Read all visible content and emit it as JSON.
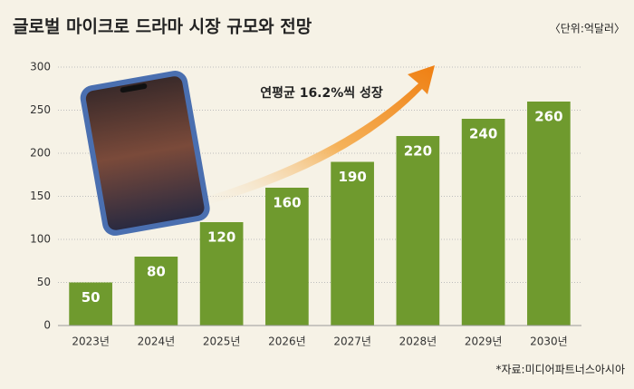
{
  "chart_data": {
    "type": "bar",
    "title": "글로벌 마이크로 드라마 시장 규모와 전망",
    "unit": "〈단위:억달러〉",
    "annotation": "연평균 16.2%씩 성장",
    "source": "*자료:미디어파트너스아시아",
    "categories": [
      "2023년",
      "2024년",
      "2025년",
      "2026년",
      "2027년",
      "2028년",
      "2029년",
      "2030년"
    ],
    "values": [
      50,
      80,
      120,
      160,
      190,
      220,
      240,
      260
    ],
    "color": "#6f9a2e",
    "ylim": [
      0,
      300
    ],
    "yticks": [
      0,
      50,
      100,
      150,
      200,
      250,
      300
    ],
    "grid": true
  }
}
